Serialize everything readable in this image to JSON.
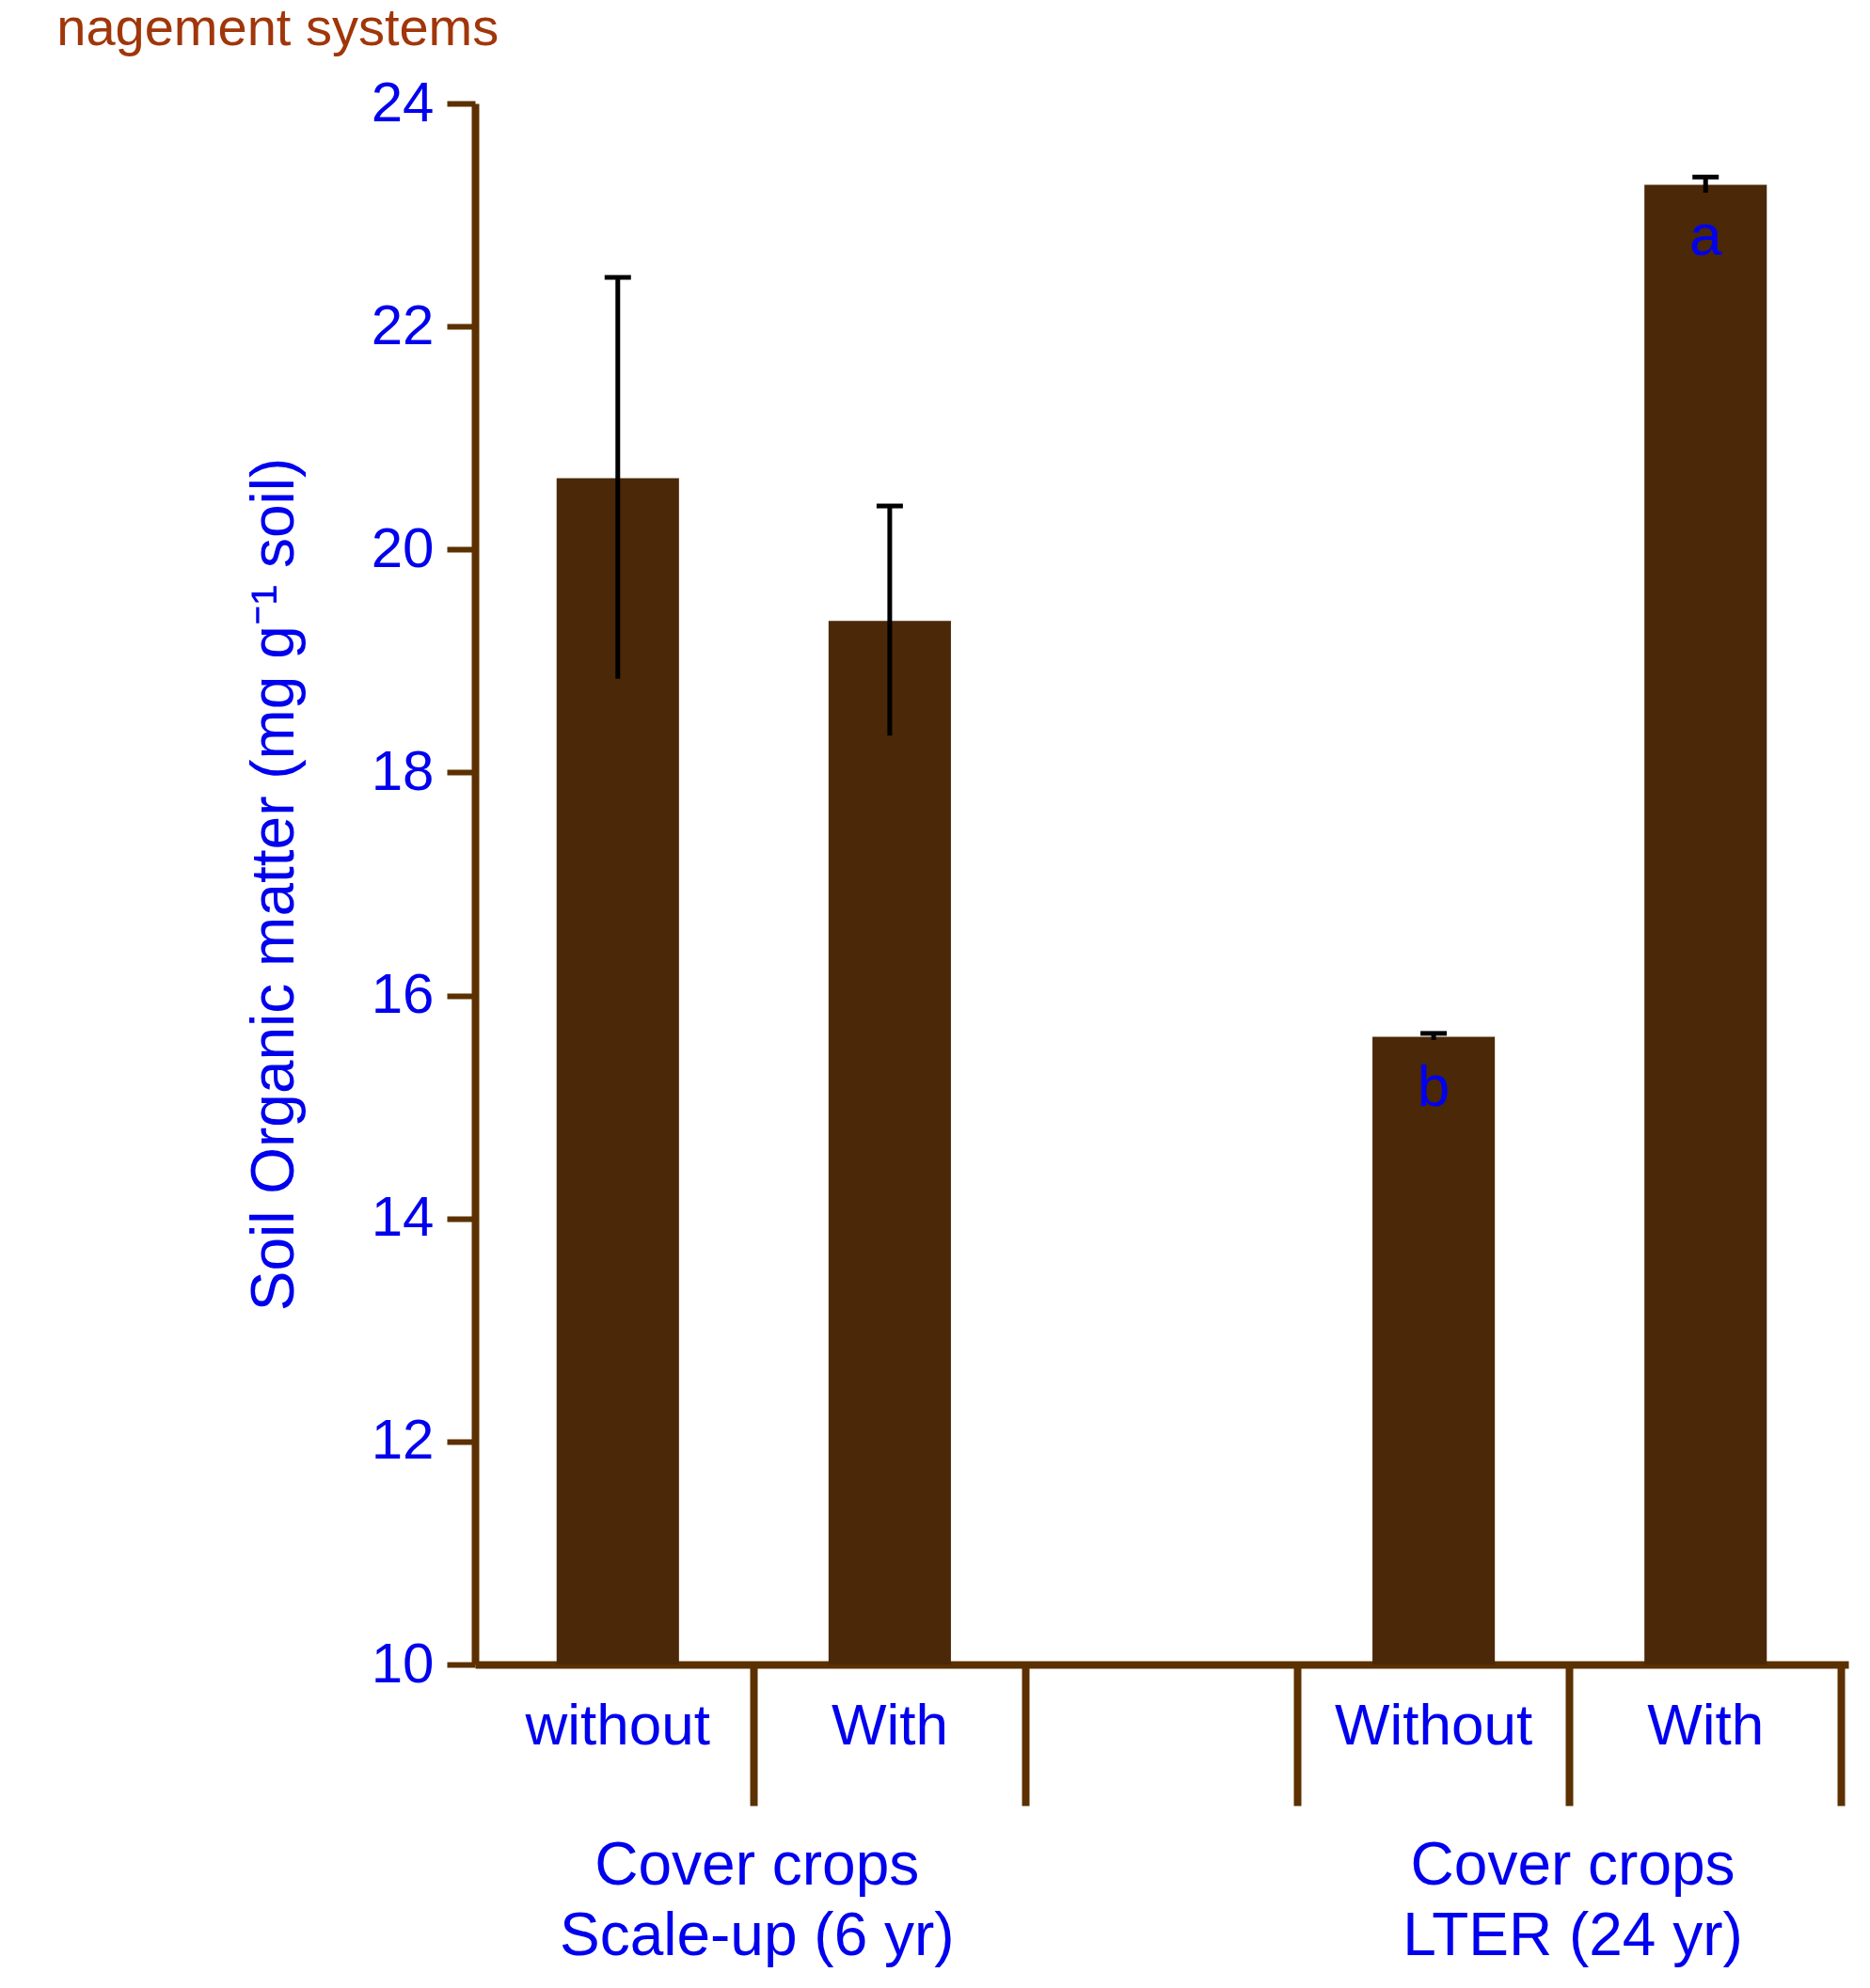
{
  "chart_data": {
    "type": "bar",
    "title": "nagement systems",
    "ylabel": "Soil Organic matter (mg g⁻¹ soil)",
    "categories": [
      "without",
      "With",
      null,
      "Without",
      "With"
    ],
    "values": [
      20.64,
      19.36,
      null,
      15.63,
      23.27
    ],
    "errors": [
      1.8,
      1.03,
      null,
      0.03,
      0.07
    ],
    "color": "#4a2808",
    "ylim": [
      10,
      24
    ],
    "yticks": [
      10,
      12,
      14,
      16,
      18,
      20,
      22,
      24
    ],
    "grid": false,
    "annotations": [
      "Cover crops",
      "Scale-up (6 yr)",
      "Cover crops",
      "LTER (24 yr)",
      "b",
      "a"
    ]
  }
}
